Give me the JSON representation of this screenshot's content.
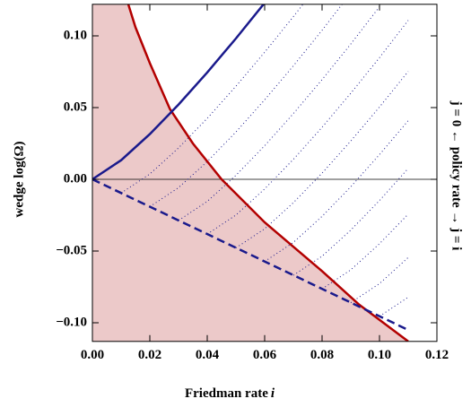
{
  "chart_data": {
    "type": "line",
    "xlabel": {
      "text": "Friedman rate",
      "var": "i"
    },
    "ylabel": "wedge  log(Ω)",
    "right_label": "j = 0 ←  policy rate  → j = i",
    "right_label_color": "#1a1a8c",
    "xlim": [
      0,
      0.12
    ],
    "ylim": [
      -0.113,
      0.122
    ],
    "xticks": [
      {
        "value": 0,
        "label": "0.00"
      },
      {
        "value": 0.02,
        "label": "0.02"
      },
      {
        "value": 0.04,
        "label": "0.04"
      },
      {
        "value": 0.06,
        "label": "0.06"
      },
      {
        "value": 0.08,
        "label": "0.08"
      },
      {
        "value": 0.1,
        "label": "0.10"
      },
      {
        "value": 0.12,
        "label": "0.12"
      }
    ],
    "yticks": [
      {
        "value": -0.1,
        "label": "−0.10"
      },
      {
        "value": -0.05,
        "label": "−0.05"
      },
      {
        "value": 0,
        "label": "0.00"
      },
      {
        "value": 0.05,
        "label": "0.05"
      },
      {
        "value": 0.1,
        "label": "0.10"
      }
    ],
    "zero_line": true,
    "series": [
      {
        "color": "#b30000",
        "style": "solid",
        "width": 2.5,
        "fill": "#ecc9c9",
        "x": [
          0.0125,
          0.015,
          0.02,
          0.027,
          0.035,
          0.045,
          0.06,
          0.08,
          0.093,
          0.1,
          0.11
        ],
        "values": [
          0.122,
          0.106,
          0.081,
          0.049,
          0.025,
          0,
          -0.03,
          -0.064,
          -0.0875,
          -0.098,
          -0.113
        ]
      },
      {
        "color": "#1a1a8c",
        "style": "solid",
        "width": 2.5,
        "x": [
          0,
          0.01,
          0.02,
          0.03,
          0.04,
          0.05,
          0.06
        ],
        "values": [
          0,
          0.0133,
          0.0315,
          0.0521,
          0.0745,
          0.0982,
          0.123
        ]
      },
      {
        "color": "#1a1a8c",
        "style": "dashed",
        "width": 2.5,
        "x": [
          0,
          0.11
        ],
        "values": [
          0,
          -0.105
        ]
      },
      {
        "color": "#1a1a8c",
        "style": "dotted",
        "width": 1,
        "x": [
          0.01,
          0.02,
          0.03,
          0.04,
          0.05,
          0.06,
          0.07,
          0.08
        ],
        "values": [
          -0.0096,
          0.0037,
          0.0219,
          0.0425,
          0.0649,
          0.0886,
          0.1134,
          0.139
        ]
      },
      {
        "color": "#1a1a8c",
        "style": "dotted",
        "width": 1,
        "x": [
          0.02,
          0.03,
          0.04,
          0.05,
          0.06,
          0.07,
          0.08,
          0.09
        ],
        "values": [
          -0.0191,
          -0.0058,
          0.0124,
          0.033,
          0.0554,
          0.0791,
          0.1039,
          0.1299
        ]
      },
      {
        "color": "#1a1a8c",
        "style": "dotted",
        "width": 1,
        "x": [
          0.03,
          0.04,
          0.05,
          0.06,
          0.07,
          0.08,
          0.09,
          0.1
        ],
        "values": [
          -0.0287,
          -0.0154,
          0.0028,
          0.0234,
          0.0458,
          0.0695,
          0.0943,
          0.1203
        ]
      },
      {
        "color": "#1a1a8c",
        "style": "dotted",
        "width": 1,
        "x": [
          0.04,
          0.05,
          0.06,
          0.07,
          0.08,
          0.09,
          0.1,
          0.11
        ],
        "values": [
          -0.0382,
          -0.0249,
          -0.0067,
          0.0139,
          0.0363,
          0.06,
          0.0848,
          0.1108
        ]
      },
      {
        "color": "#1a1a8c",
        "style": "dotted",
        "width": 1,
        "x": [
          0.05,
          0.06,
          0.07,
          0.08,
          0.09,
          0.1,
          0.11
        ],
        "values": [
          -0.0478,
          -0.0345,
          -0.0163,
          0.0043,
          0.0267,
          0.0504,
          0.0752
        ]
      },
      {
        "color": "#1a1a8c",
        "style": "dotted",
        "width": 1,
        "x": [
          0.06,
          0.07,
          0.08,
          0.09,
          0.1,
          0.11
        ],
        "values": [
          -0.0573,
          -0.044,
          -0.0258,
          -0.0052,
          0.0172,
          0.0409
        ]
      },
      {
        "color": "#1a1a8c",
        "style": "dotted",
        "width": 1,
        "x": [
          0.07,
          0.08,
          0.09,
          0.1,
          0.11
        ],
        "values": [
          -0.0669,
          -0.0536,
          -0.0354,
          -0.0148,
          0.0076
        ]
      },
      {
        "color": "#1a1a8c",
        "style": "dotted",
        "width": 1,
        "x": [
          0.08,
          0.09,
          0.1,
          0.11
        ],
        "values": [
          -0.0764,
          -0.0631,
          -0.0449,
          -0.0243
        ]
      },
      {
        "color": "#1a1a8c",
        "style": "dotted",
        "width": 1,
        "x": [
          0.09,
          0.1,
          0.11
        ],
        "values": [
          -0.086,
          -0.0727,
          -0.0545
        ]
      },
      {
        "color": "#1a1a8c",
        "style": "dotted",
        "width": 1,
        "x": [
          0.1,
          0.11
        ],
        "values": [
          -0.0955,
          -0.0822
        ]
      }
    ]
  }
}
